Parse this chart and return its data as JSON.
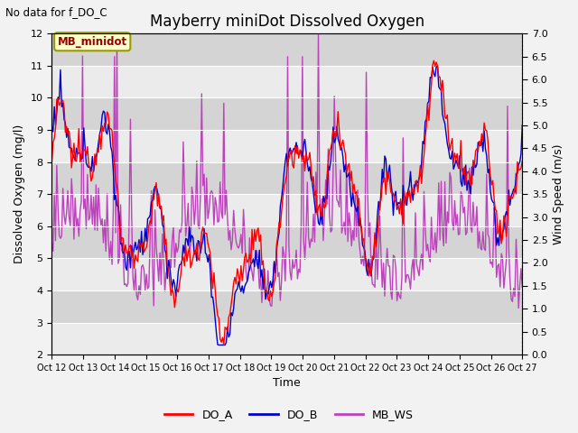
{
  "title": "Mayberry miniDot Dissolved Oxygen",
  "no_data_text": "No data for f_DO_C",
  "station_label": "MB_minidot",
  "ylabel_left": "Dissolved Oxygen (mg/l)",
  "ylabel_right": "Wind Speed (m/s)",
  "xlabel": "Time",
  "ylim_left": [
    2.0,
    12.0
  ],
  "ylim_right": [
    0.0,
    7.0
  ],
  "yticks_left": [
    2.0,
    3.0,
    4.0,
    5.0,
    6.0,
    7.0,
    8.0,
    9.0,
    10.0,
    11.0,
    12.0
  ],
  "yticks_right": [
    0.0,
    0.5,
    1.0,
    1.5,
    2.0,
    2.5,
    3.0,
    3.5,
    4.0,
    4.5,
    5.0,
    5.5,
    6.0,
    6.5,
    7.0
  ],
  "xtick_labels": [
    "Oct 12",
    "Oct 13",
    "Oct 14",
    "Oct 15",
    "Oct 16",
    "Oct 17",
    "Oct 18",
    "Oct 19",
    "Oct 20",
    "Oct 21",
    "Oct 22",
    "Oct 23",
    "Oct 24",
    "Oct 25",
    "Oct 26",
    "Oct 27"
  ],
  "line_do_a_color": "#FF0000",
  "line_do_b_color": "#0000CC",
  "line_mb_ws_color": "#BB44BB",
  "line_width": 1.0,
  "fig_bg_color": "#F2F2F2",
  "plot_bg_color": "#E0E0E0",
  "band_light": "#EBEBEB",
  "band_dark": "#D4D4D4",
  "legend_label_a": "DO_A",
  "legend_label_b": "DO_B",
  "legend_label_ws": "MB_WS",
  "station_box_face": "#FFFFCC",
  "station_box_edge": "#999900",
  "station_text_color": "#990000"
}
